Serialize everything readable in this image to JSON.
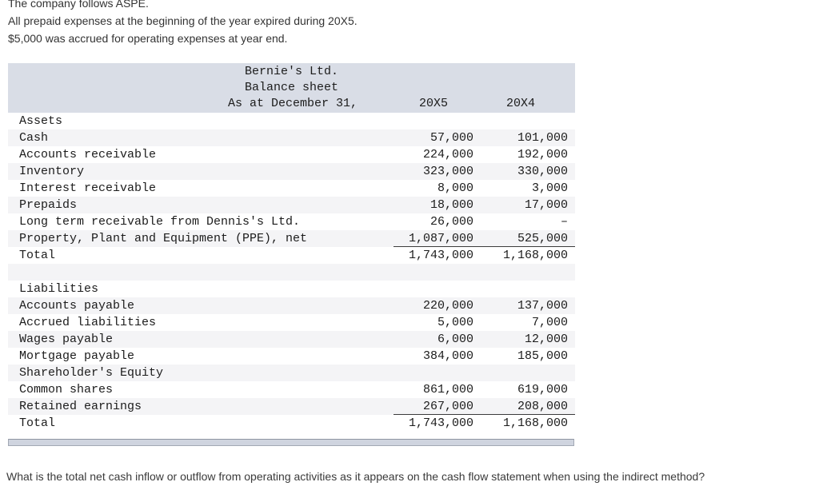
{
  "intro": {
    "line1": "The company follows ASPE.",
    "line2": "All prepaid expenses at the beginning of the year expired during 20X5.",
    "line3": "$5,000 was accrued for operating expenses at year end."
  },
  "balance_sheet": {
    "company": "Bernie's Ltd.",
    "title": "Balance sheet",
    "date_label": "As at December 31,",
    "col_20x5": "20X5",
    "col_20x4": "20X4",
    "rows": [
      {
        "label": "Assets",
        "v1": "",
        "v2": ""
      },
      {
        "label": "Cash",
        "v1": "57,000",
        "v2": "101,000"
      },
      {
        "label": "Accounts receivable",
        "v1": "224,000",
        "v2": "192,000"
      },
      {
        "label": "Inventory",
        "v1": "323,000",
        "v2": "330,000"
      },
      {
        "label": "Interest receivable",
        "v1": "8,000",
        "v2": "3,000"
      },
      {
        "label": "Prepaids",
        "v1": "18,000",
        "v2": "17,000"
      },
      {
        "label": "Long term receivable from Dennis's Ltd.",
        "v1": "26,000",
        "v2": "–"
      },
      {
        "label": "Property, Plant and Equipment (PPE), net",
        "v1": "1,087,000",
        "v2": "525,000",
        "rule": true
      },
      {
        "label": "Total",
        "v1": "1,743,000",
        "v2": "1,168,000"
      },
      {
        "label": "",
        "v1": "",
        "v2": ""
      },
      {
        "label": "Liabilities",
        "v1": "",
        "v2": ""
      },
      {
        "label": "Accounts payable",
        "v1": "220,000",
        "v2": "137,000"
      },
      {
        "label": "Accrued liabilities",
        "v1": "5,000",
        "v2": "7,000"
      },
      {
        "label": "Wages payable",
        "v1": "6,000",
        "v2": "12,000"
      },
      {
        "label": "Mortgage payable",
        "v1": "384,000",
        "v2": "185,000"
      },
      {
        "label": "Shareholder's Equity",
        "v1": "",
        "v2": ""
      },
      {
        "label": "Common shares",
        "v1": "861,000",
        "v2": "619,000"
      },
      {
        "label": "Retained earnings",
        "v1": "267,000",
        "v2": "208,000",
        "rule": true
      },
      {
        "label": "Total",
        "v1": "1,743,000",
        "v2": "1,168,000"
      }
    ]
  },
  "question": "What is the total net cash inflow or outflow from operating activities as it appears on the cash flow statement when using the indirect method?",
  "colors": {
    "header_band": "#d9dde6",
    "row_stripe": "#f4f4f6",
    "scrollbar_fill": "#cfd4df",
    "scrollbar_border": "#a2a8b4",
    "text": "#1c1c1c"
  }
}
